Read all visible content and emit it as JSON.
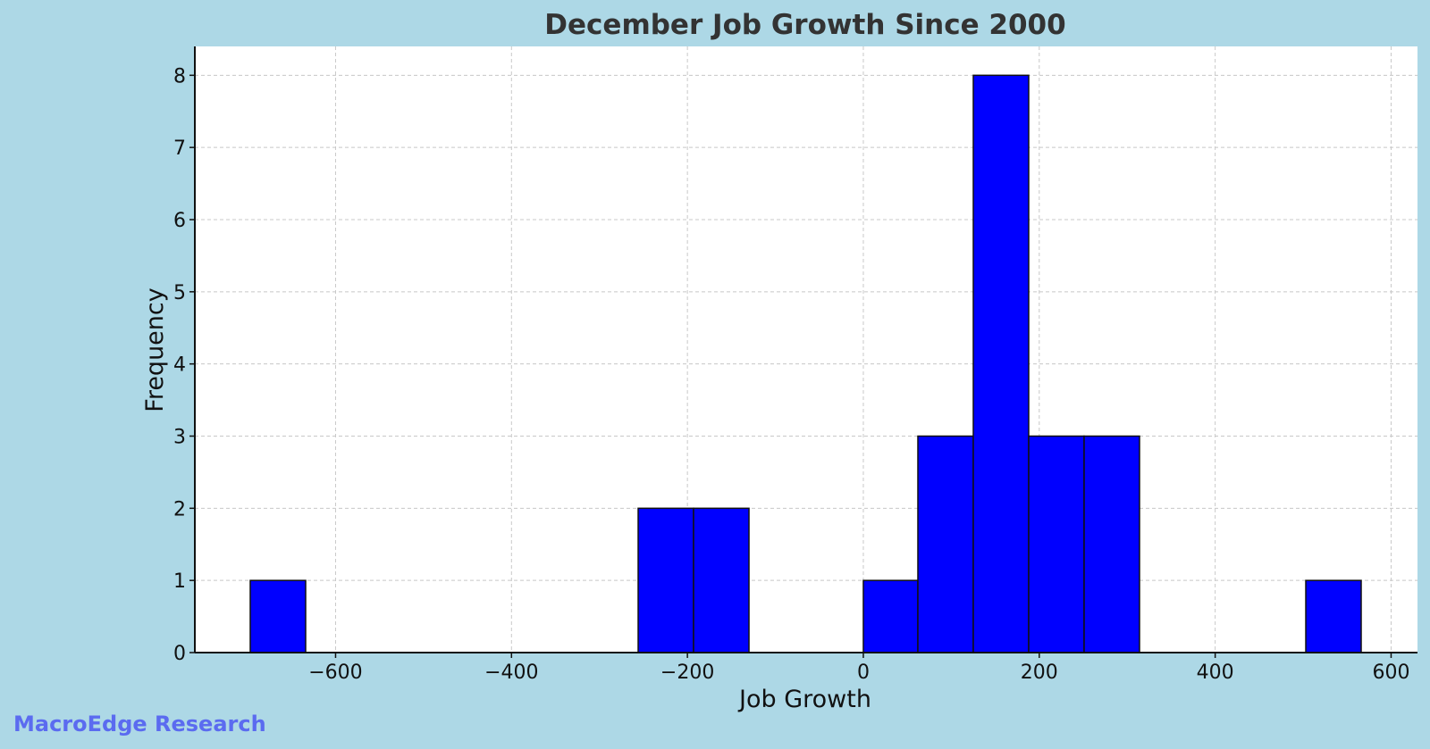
{
  "chart_data": {
    "type": "bar",
    "title": "December Job Growth Since 2000",
    "xlabel": "Job Growth",
    "ylabel": "Frequency",
    "xlim": [
      -760,
      630
    ],
    "ylim": [
      0,
      8.4
    ],
    "x_ticks": [
      -600,
      -400,
      -200,
      0,
      200,
      400,
      600
    ],
    "x_tick_labels": [
      "−600",
      "−400",
      "−200",
      "0",
      "200",
      "400",
      "600"
    ],
    "y_ticks": [
      0,
      1,
      2,
      3,
      4,
      5,
      6,
      7,
      8
    ],
    "y_tick_labels": [
      "0",
      "1",
      "2",
      "3",
      "4",
      "5",
      "6",
      "7",
      "8"
    ],
    "grid": true,
    "bins": [
      {
        "x0": -697,
        "x1": -634,
        "count": 1
      },
      {
        "x0": -256,
        "x1": -193,
        "count": 2
      },
      {
        "x0": -193,
        "x1": -130,
        "count": 2
      },
      {
        "x0": 0,
        "x1": 62,
        "count": 1
      },
      {
        "x0": 62,
        "x1": 125,
        "count": 3
      },
      {
        "x0": 125,
        "x1": 188,
        "count": 8
      },
      {
        "x0": 188,
        "x1": 251,
        "count": 3
      },
      {
        "x0": 251,
        "x1": 314,
        "count": 3
      },
      {
        "x0": 503,
        "x1": 566,
        "count": 1
      }
    ],
    "colors": {
      "bar_fill": "#0000ff",
      "bar_edge": "#111111",
      "plot_background": "#ffffff",
      "figure_background": "#add8e6"
    }
  },
  "watermark": "MacroEdge Research"
}
